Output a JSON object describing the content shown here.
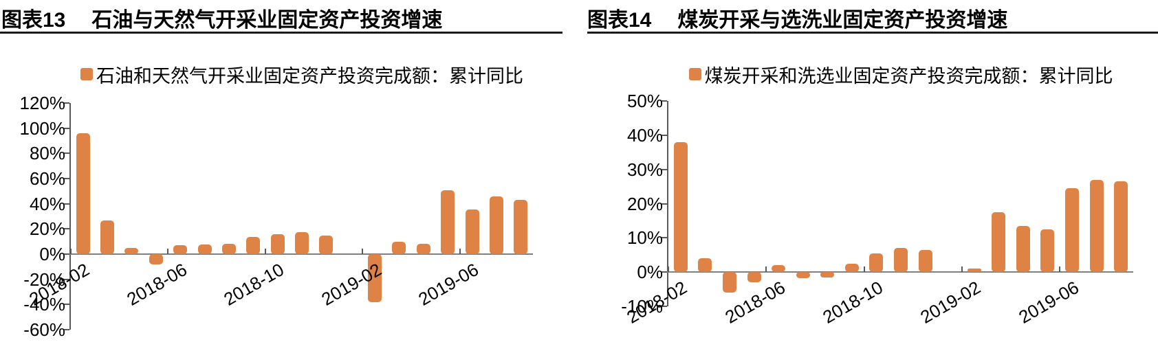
{
  "page": {
    "background": "#ffffff"
  },
  "colors": {
    "bar": "#DE8246",
    "zero_line": "#808080",
    "axis": "#595959",
    "title_rule": "#1a1a1a",
    "text": "#000000"
  },
  "charts": [
    {
      "figure_label": "图表13",
      "title": "石油与天然气开采业固定资产投资增速",
      "legend_label": "石油和天然气开采业固定资产投资完成额：累计同比",
      "bar_color": "#DE8246",
      "chart_data": {
        "type": "bar",
        "x": [
          "2018-02",
          "2018-03",
          "2018-04",
          "2018-05",
          "2018-06",
          "2018-07",
          "2018-08",
          "2018-09",
          "2018-10",
          "2018-11",
          "2018-12",
          "2019-01",
          "2019-02",
          "2019-03",
          "2019-04",
          "2019-05",
          "2019-06",
          "2019-07",
          "2019-08"
        ],
        "values": [
          96,
          27,
          5,
          -8,
          7,
          7.5,
          8,
          13.5,
          16,
          17.5,
          15,
          null,
          -38,
          10,
          8,
          50.5,
          35.5,
          46,
          43
        ],
        "ylim": [
          -60,
          120
        ],
        "y_tick_labels": [
          "120%",
          "100%",
          "80%",
          "60%",
          "40%",
          "20%",
          "0%",
          "-20%",
          "-40%",
          "-60%"
        ],
        "x_tick_labels": [
          "2018-02",
          "2018-06",
          "2018-10",
          "2019-02",
          "2019-06"
        ],
        "ylabel": "",
        "xlabel": "",
        "grid": false,
        "legend_position": "top-center"
      }
    },
    {
      "figure_label": "图表14",
      "title": "煤炭开采与选洗业固定资产投资增速",
      "legend_label": "煤炭开采和洗选业固定资产投资完成额：累计同比",
      "bar_color": "#DE8246",
      "chart_data": {
        "type": "bar",
        "x": [
          "2018-02",
          "2018-03",
          "2018-04",
          "2018-05",
          "2018-06",
          "2018-07",
          "2018-08",
          "2018-09",
          "2018-10",
          "2018-11",
          "2018-12",
          "2019-01",
          "2019-02",
          "2019-03",
          "2019-04",
          "2019-05",
          "2019-06",
          "2019-07",
          "2019-08"
        ],
        "values": [
          38,
          4,
          -6,
          -3,
          2,
          -1.8,
          -1.5,
          2.5,
          5.5,
          7,
          6.5,
          null,
          1,
          17.5,
          13.5,
          12.5,
          24.5,
          27,
          26.5
        ],
        "ylim": [
          -10,
          50
        ],
        "y_tick_labels": [
          "50%",
          "40%",
          "30%",
          "20%",
          "10%",
          "0%",
          "-10%"
        ],
        "x_tick_labels": [
          "2018-02",
          "2018-06",
          "2018-10",
          "2019-02",
          "2019-06"
        ],
        "ylabel": "",
        "xlabel": "",
        "grid": false,
        "legend_position": "top-center"
      }
    }
  ]
}
